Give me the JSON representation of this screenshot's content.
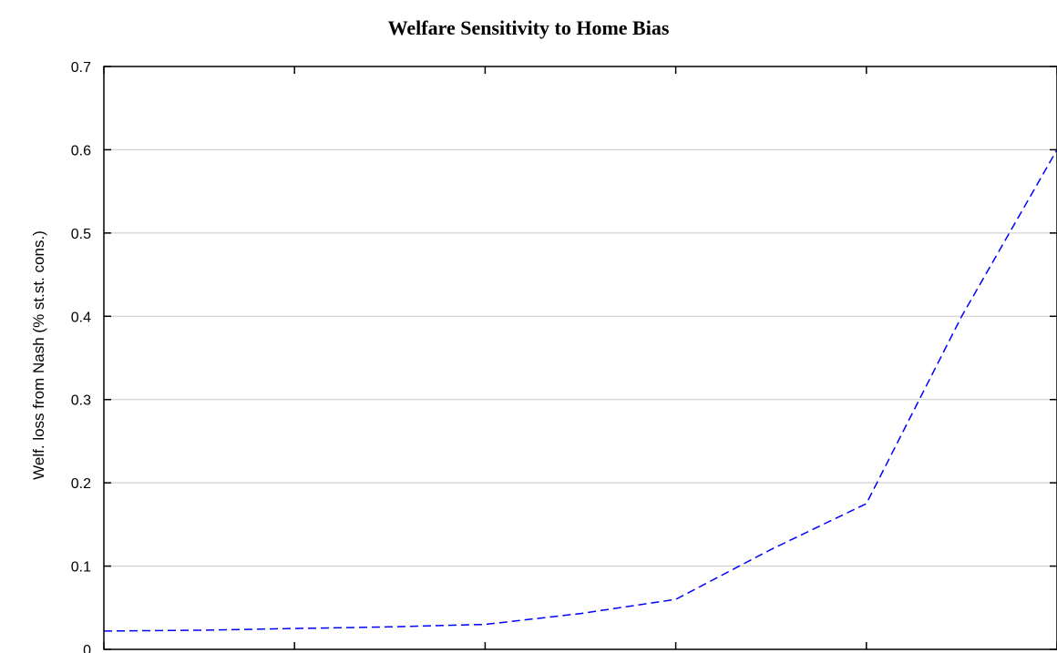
{
  "chart_data": {
    "type": "line",
    "title": "Welfare Sensitivity to Home Bias",
    "ylabel": "Welf. loss from Nash (% st.st. cons.)",
    "xlabel": "",
    "ylim": [
      0,
      0.7
    ],
    "yticks": [
      "0",
      "0.1",
      "0.2",
      "0.3",
      "0.4",
      "0.5",
      "0.6",
      "0.7"
    ],
    "x_tick_count": 6,
    "grid": "horizontal",
    "colors": {
      "series": "#0000ff",
      "grid": "#c8c8c8",
      "axis": "#000000"
    },
    "series": [
      {
        "x": [
          0,
          1,
          2,
          3,
          4,
          5,
          6,
          7,
          8,
          9,
          10
        ],
        "values": [
          0.022,
          0.023,
          0.025,
          0.027,
          0.03,
          0.043,
          0.06,
          0.12,
          0.175,
          0.4,
          0.6
        ],
        "style": "dashed"
      }
    ]
  }
}
